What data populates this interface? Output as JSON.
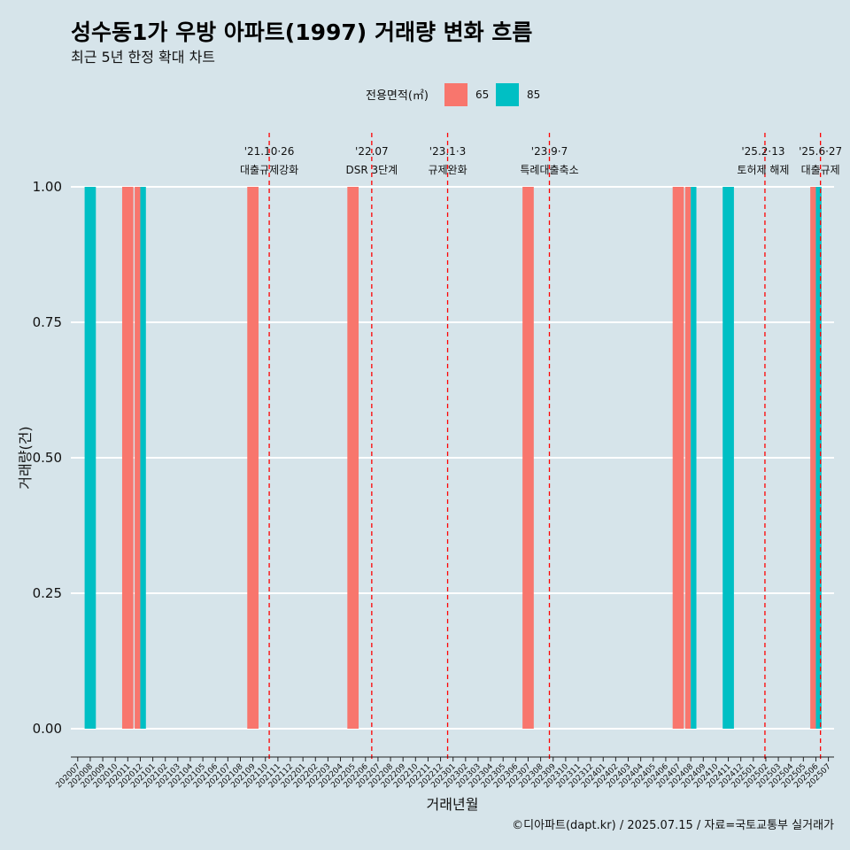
{
  "chart_data": {
    "type": "bar",
    "title": "성수동1가 우방 아파트(1997) 거래량 변화 흐름",
    "subtitle": "최근 5년 한정 확대 차트",
    "xlabel": "거래년월",
    "ylabel": "거래량(건)",
    "caption": "©디아파트(dapt.kr) / 2025.07.15 / 자료=국토교통부 실거래가",
    "legend": {
      "title": "전용면적(㎡)",
      "position": "top"
    },
    "ylim": [
      0,
      1
    ],
    "yticks": [
      "0.00",
      "0.25",
      "0.50",
      "0.75",
      "1.00"
    ],
    "grid": true,
    "categories": [
      "202007",
      "202008",
      "202009",
      "202010",
      "202011",
      "202012",
      "202101",
      "202102",
      "202103",
      "202104",
      "202105",
      "202106",
      "202107",
      "202108",
      "202109",
      "202110",
      "202111",
      "202112",
      "202201",
      "202202",
      "202203",
      "202204",
      "202205",
      "202206",
      "202207",
      "202208",
      "202209",
      "202210",
      "202211",
      "202212",
      "202301",
      "202302",
      "202303",
      "202304",
      "202305",
      "202306",
      "202307",
      "202308",
      "202309",
      "202310",
      "202311",
      "202312",
      "202401",
      "202402",
      "202403",
      "202404",
      "202405",
      "202406",
      "202407",
      "202408",
      "202409",
      "202410",
      "202411",
      "202412",
      "202501",
      "202502",
      "202503",
      "202504",
      "202505",
      "202506",
      "202507"
    ],
    "series": [
      {
        "name": "65",
        "color": "#f8766d",
        "points": [
          {
            "x": "202011",
            "y": 1
          },
          {
            "x": "202012",
            "y": 1
          },
          {
            "x": "202109",
            "y": 1
          },
          {
            "x": "202205",
            "y": 1
          },
          {
            "x": "202307",
            "y": 1
          },
          {
            "x": "202407",
            "y": 1
          },
          {
            "x": "202408",
            "y": 1
          },
          {
            "x": "202506",
            "y": 1
          }
        ]
      },
      {
        "name": "85",
        "color": "#00bfc4",
        "points": [
          {
            "x": "202008",
            "y": 1
          },
          {
            "x": "202012",
            "y": 1
          },
          {
            "x": "202408",
            "y": 1
          },
          {
            "x": "202411",
            "y": 1
          },
          {
            "x": "202506",
            "y": 1
          }
        ]
      }
    ],
    "annotations": [
      {
        "date_label": "'21.10·26",
        "label": "대출규제강화",
        "x": "2021-10-26"
      },
      {
        "date_label": "'22.07",
        "label": "DSR 3단계",
        "x": "2022-07-01"
      },
      {
        "date_label": "'23.1·3",
        "label": "규제완화",
        "x": "2023-01-03"
      },
      {
        "date_label": "'23.9·7",
        "label": "특례대출축소",
        "x": "2023-09-07"
      },
      {
        "date_label": "'25.2·13",
        "label": "토허제 해제",
        "x": "2025-02-13"
      },
      {
        "date_label": "'25.6·27",
        "label": "대출규제",
        "x": "2025-06-27"
      }
    ]
  }
}
